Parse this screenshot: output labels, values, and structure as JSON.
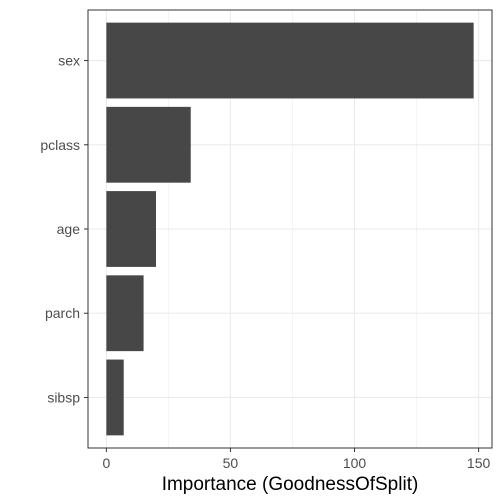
{
  "chart_data": {
    "type": "bar",
    "orientation": "horizontal",
    "categories": [
      "sex",
      "pclass",
      "age",
      "parch",
      "sibsp"
    ],
    "values": [
      148,
      34,
      20,
      15,
      7
    ],
    "xlabel": "Importance (GoodnessOfSplit)",
    "ylabel": "",
    "xlim": [
      -7.4,
      155.4
    ],
    "x_ticks": [
      0,
      50,
      100,
      150
    ],
    "x_tick_labels": [
      "0",
      "50",
      "100",
      "150"
    ],
    "grid": true,
    "legend": "none",
    "colors": {
      "bar": "#474747",
      "grid": "#ebebeb",
      "panel_border": "#333333",
      "text": "#4d4d4d"
    }
  }
}
